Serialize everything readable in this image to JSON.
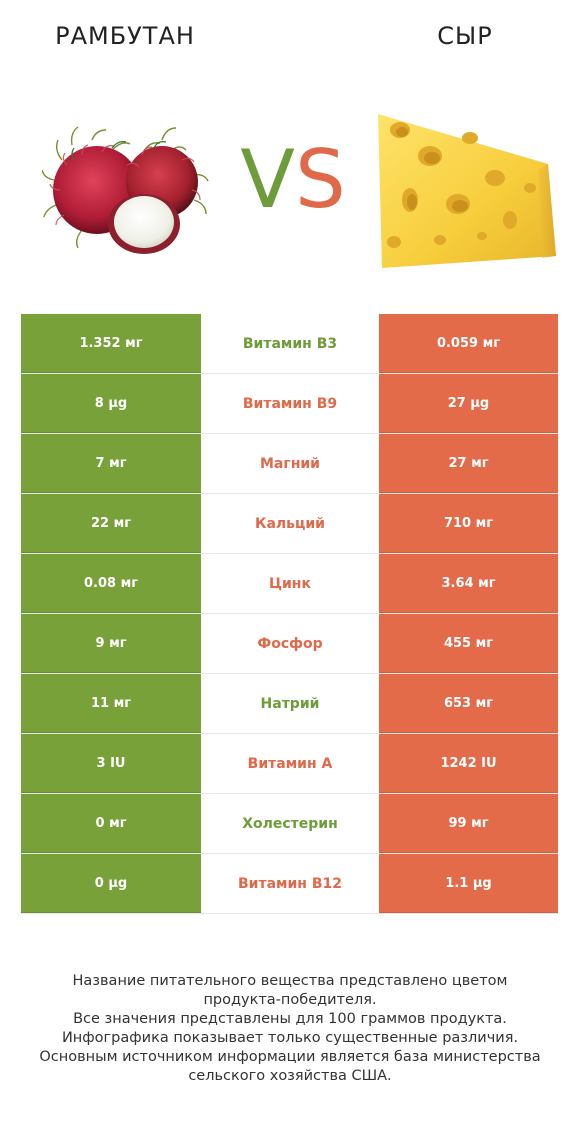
{
  "header": {
    "left_title": "РАМБУТАН",
    "right_title": "СЫР",
    "vs_v": "V",
    "vs_s": "S"
  },
  "colors": {
    "green": "#79a13a",
    "red": "#e36b4a"
  },
  "rows": [
    {
      "left": "1.352 мг",
      "name": "Витамин B3",
      "right": "0.059 мг",
      "winner": "left"
    },
    {
      "left": "8 µg",
      "name": "Витамин B9",
      "right": "27 µg",
      "winner": "right"
    },
    {
      "left": "7 мг",
      "name": "Магний",
      "right": "27 мг",
      "winner": "right"
    },
    {
      "left": "22 мг",
      "name": "Кальций",
      "right": "710 мг",
      "winner": "right"
    },
    {
      "left": "0.08 мг",
      "name": "Цинк",
      "right": "3.64 мг",
      "winner": "right"
    },
    {
      "left": "9 мг",
      "name": "Фосфор",
      "right": "455 мг",
      "winner": "right"
    },
    {
      "left": "11 мг",
      "name": "Натрий",
      "right": "653 мг",
      "winner": "left"
    },
    {
      "left": "3 IU",
      "name": "Витамин A",
      "right": "1242 IU",
      "winner": "right"
    },
    {
      "left": "0 мг",
      "name": "Холестерин",
      "right": "99 мг",
      "winner": "left"
    },
    {
      "left": "0 µg",
      "name": "Витамин B12",
      "right": "1.1 µg",
      "winner": "right"
    }
  ],
  "footer": {
    "line1": "Название питательного вещества представлено цветом",
    "line2": "продукта-победителя.",
    "line3": "Все значения представлены для 100 граммов продукта.",
    "line4": "Инфографика показывает только существенные различия.",
    "line5": "Основным источником информации является база министерства",
    "line6": "сельского хозяйства США."
  }
}
